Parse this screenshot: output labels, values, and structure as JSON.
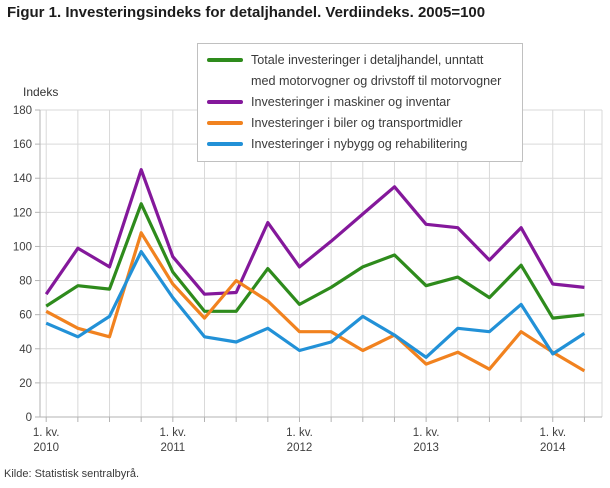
{
  "title": "Figur 1. Investeringsindeks for detaljhandel. Verdiindeks. 2005=100",
  "y_axis_title": "Indeks",
  "source": "Kilde: Statistisk sentralbyrå.",
  "legend": {
    "items": [
      {
        "lines": [
          "Totale investeringer i detaljhandel, unntatt",
          "med motorvogner og drivstoff til motorvogner"
        ]
      },
      {
        "lines": [
          "Investeringer i maskiner og inventar"
        ]
      },
      {
        "lines": [
          "Investeringer i biler og transportmidler"
        ]
      },
      {
        "lines": [
          "Investeringer i nybygg og rehabilitering"
        ]
      }
    ]
  },
  "colors": {
    "green": "#2e8b1c",
    "purple": "#84189b",
    "orange": "#f1821f",
    "blue": "#2291d7",
    "gridline": "#d9d9d9",
    "axis": "#b3b3b3",
    "tick_text": "#3f3f3f"
  },
  "chart_data": {
    "type": "line",
    "title": "Figur 1. Investeringsindeks for detaljhandel. Verdiindeks. 2005=100",
    "ylabel": "Indeks",
    "ylim": [
      0,
      180
    ],
    "y_ticks": [
      0,
      20,
      40,
      60,
      80,
      100,
      120,
      140,
      160,
      180
    ],
    "grid": true,
    "legend_position": "top-center",
    "x_quarters": [
      "2010 K1",
      "2010 K2",
      "2010 K3",
      "2010 K4",
      "2011 K1",
      "2011 K2",
      "2011 K3",
      "2011 K4",
      "2012 K1",
      "2012 K2",
      "2012 K3",
      "2012 K4",
      "2013 K1",
      "2013 K2",
      "2013 K3",
      "2013 K4",
      "2014 K1",
      "2014 K2"
    ],
    "x_tick_positions": [
      0,
      4,
      8,
      12,
      16
    ],
    "x_tick_labels": [
      [
        "1. kv.",
        "2010"
      ],
      [
        "1. kv.",
        "2011"
      ],
      [
        "1. kv.",
        "2012"
      ],
      [
        "1. kv.",
        "2013"
      ],
      [
        "1. kv.",
        "2014"
      ]
    ],
    "series": [
      {
        "name": "Totale investeringer i detaljhandel, unntatt med motorvogner og drivstoff til motorvogner",
        "color": "#2e8b1c",
        "values": [
          65,
          77,
          75,
          125,
          85,
          62,
          62,
          87,
          66,
          76,
          88,
          95,
          77,
          82,
          70,
          89,
          58,
          60
        ]
      },
      {
        "name": "Investeringer i maskiner og inventar",
        "color": "#84189b",
        "values": [
          72,
          99,
          88,
          145,
          94,
          72,
          73,
          114,
          88,
          103,
          119,
          135,
          113,
          111,
          92,
          111,
          78,
          76
        ]
      },
      {
        "name": "Investeringer i biler og transportmidler",
        "color": "#f1821f",
        "values": [
          62,
          52,
          47,
          108,
          78,
          58,
          80,
          68,
          50,
          50,
          39,
          48,
          31,
          38,
          28,
          50,
          38,
          27
        ]
      },
      {
        "name": "Investeringer i nybygg og rehabilitering",
        "color": "#2291d7",
        "values": [
          55,
          47,
          59,
          97,
          70,
          47,
          44,
          52,
          39,
          44,
          59,
          48,
          35,
          52,
          50,
          66,
          37,
          49
        ]
      }
    ]
  }
}
